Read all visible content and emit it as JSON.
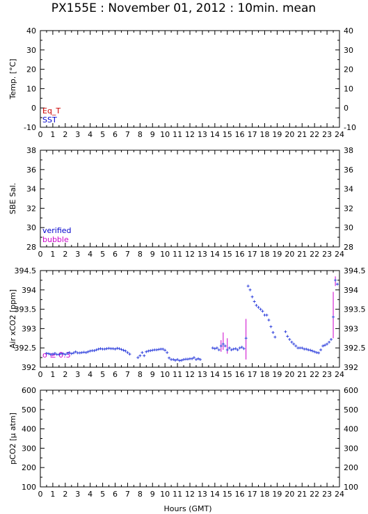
{
  "title": "PX155E : November 01, 2012 : 10min. mean",
  "xlabel": "Hours (GMT)",
  "chart_data": [
    {
      "type": "line",
      "ylabel": "Temp. [°C]",
      "xlim": [
        0,
        24
      ],
      "ylim": [
        -10,
        40
      ],
      "xticks": [
        0,
        1,
        2,
        3,
        4,
        5,
        6,
        7,
        8,
        9,
        10,
        11,
        12,
        13,
        14,
        15,
        16,
        17,
        18,
        19,
        20,
        21,
        22,
        23,
        24
      ],
      "yticks": [
        -10,
        0,
        10,
        20,
        30,
        40
      ],
      "legend": [
        {
          "label": "Eq_T",
          "color": "#cc0000"
        },
        {
          "label": "SST",
          "color": "#0000cc"
        }
      ],
      "series": []
    },
    {
      "type": "line",
      "ylabel": "SBE Sal.",
      "xlim": [
        0,
        24
      ],
      "ylim": [
        28,
        38
      ],
      "xticks": [
        0,
        1,
        2,
        3,
        4,
        5,
        6,
        7,
        8,
        9,
        10,
        11,
        12,
        13,
        14,
        15,
        16,
        17,
        18,
        19,
        20,
        21,
        22,
        23,
        24
      ],
      "yticks": [
        28,
        30,
        32,
        34,
        36,
        38
      ],
      "legend": [
        {
          "label": "verified",
          "color": "#0000cc"
        },
        {
          "label": "bubble",
          "color": "#cc00cc"
        }
      ],
      "series": []
    },
    {
      "type": "scatter",
      "ylabel": "Air xCO2 [ppm]",
      "xlim": [
        0,
        24
      ],
      "ylim": [
        392,
        394.5
      ],
      "xticks": [
        0,
        1,
        2,
        3,
        4,
        5,
        6,
        7,
        8,
        9,
        10,
        11,
        12,
        13,
        14,
        15,
        16,
        17,
        18,
        19,
        20,
        21,
        22,
        23,
        24
      ],
      "yticks": [
        392,
        392.5,
        393,
        393.5,
        394,
        394.5
      ],
      "ytick_labels": [
        "392",
        "392.5",
        "393",
        "393.5",
        "394",
        "394.5"
      ],
      "annotation": {
        "text": "σ ≥ 0.3",
        "color": "#cc00cc"
      },
      "marker_color": "#3344dd",
      "errorbar_color": "#cc00cc",
      "points": [
        [
          0.5,
          392.36
        ],
        [
          0.67,
          392.35
        ],
        [
          0.83,
          392.33
        ],
        [
          1.0,
          392.34
        ],
        [
          1.17,
          392.36
        ],
        [
          1.33,
          392.33
        ],
        [
          1.5,
          392.33
        ],
        [
          1.67,
          392.35
        ],
        [
          1.83,
          392.35
        ],
        [
          2.0,
          392.33
        ],
        [
          2.17,
          392.36
        ],
        [
          2.33,
          392.38
        ],
        [
          2.5,
          392.35
        ],
        [
          2.67,
          392.37
        ],
        [
          2.83,
          392.4
        ],
        [
          3.0,
          392.37
        ],
        [
          3.17,
          392.37
        ],
        [
          3.33,
          392.38
        ],
        [
          3.5,
          392.39
        ],
        [
          3.67,
          392.38
        ],
        [
          3.83,
          392.4
        ],
        [
          4.0,
          392.42
        ],
        [
          4.17,
          392.43
        ],
        [
          4.33,
          392.43
        ],
        [
          4.5,
          392.45
        ],
        [
          4.67,
          392.47
        ],
        [
          4.83,
          392.48
        ],
        [
          5.0,
          392.47
        ],
        [
          5.17,
          392.47
        ],
        [
          5.33,
          392.48
        ],
        [
          5.5,
          392.49
        ],
        [
          5.67,
          392.48
        ],
        [
          5.83,
          392.48
        ],
        [
          6.0,
          392.47
        ],
        [
          6.17,
          392.49
        ],
        [
          6.33,
          392.48
        ],
        [
          6.5,
          392.46
        ],
        [
          6.67,
          392.44
        ],
        [
          6.83,
          392.42
        ],
        [
          7.0,
          392.38
        ],
        [
          7.17,
          392.34
        ],
        [
          7.83,
          392.25
        ],
        [
          8.0,
          392.3
        ],
        [
          8.17,
          392.38
        ],
        [
          8.33,
          392.3
        ],
        [
          8.5,
          392.4
        ],
        [
          8.67,
          392.42
        ],
        [
          8.83,
          392.43
        ],
        [
          9.0,
          392.44
        ],
        [
          9.17,
          392.45
        ],
        [
          9.33,
          392.45
        ],
        [
          9.5,
          392.46
        ],
        [
          9.67,
          392.47
        ],
        [
          9.83,
          392.47
        ],
        [
          10.0,
          392.44
        ],
        [
          10.17,
          392.38
        ],
        [
          10.33,
          392.24
        ],
        [
          10.5,
          392.2
        ],
        [
          10.67,
          392.2
        ],
        [
          10.83,
          392.18
        ],
        [
          11.0,
          392.2
        ],
        [
          11.17,
          392.17
        ],
        [
          11.33,
          392.18
        ],
        [
          11.5,
          392.2
        ],
        [
          11.67,
          392.21
        ],
        [
          11.83,
          392.21
        ],
        [
          12.0,
          392.22
        ],
        [
          12.17,
          392.22
        ],
        [
          12.33,
          392.25
        ],
        [
          12.5,
          392.2
        ],
        [
          12.67,
          392.22
        ],
        [
          12.83,
          392.2
        ],
        [
          13.83,
          392.5
        ],
        [
          14.0,
          392.48
        ],
        [
          14.17,
          392.5
        ],
        [
          14.33,
          392.45
        ],
        [
          14.5,
          392.55
        ],
        [
          14.67,
          392.6
        ],
        [
          14.83,
          392.55
        ],
        [
          15.0,
          392.45
        ],
        [
          15.17,
          392.5
        ],
        [
          15.33,
          392.45
        ],
        [
          15.5,
          392.47
        ],
        [
          15.67,
          392.48
        ],
        [
          15.83,
          392.45
        ],
        [
          16.0,
          392.5
        ],
        [
          16.17,
          392.52
        ],
        [
          16.33,
          392.48
        ],
        [
          16.5,
          392.75
        ],
        [
          16.67,
          394.1
        ],
        [
          16.83,
          394.0
        ],
        [
          17.0,
          393.82
        ],
        [
          17.17,
          393.7
        ],
        [
          17.33,
          393.6
        ],
        [
          17.5,
          393.55
        ],
        [
          17.67,
          393.5
        ],
        [
          17.83,
          393.45
        ],
        [
          18.0,
          393.35
        ],
        [
          18.17,
          393.35
        ],
        [
          18.33,
          393.22
        ],
        [
          18.5,
          393.05
        ],
        [
          18.67,
          392.9
        ],
        [
          18.83,
          392.78
        ],
        [
          19.67,
          392.92
        ],
        [
          19.83,
          392.8
        ],
        [
          20.0,
          392.72
        ],
        [
          20.17,
          392.65
        ],
        [
          20.33,
          392.6
        ],
        [
          20.5,
          392.55
        ],
        [
          20.67,
          392.5
        ],
        [
          20.83,
          392.5
        ],
        [
          21.0,
          392.5
        ],
        [
          21.17,
          392.47
        ],
        [
          21.33,
          392.47
        ],
        [
          21.5,
          392.45
        ],
        [
          21.67,
          392.44
        ],
        [
          21.83,
          392.42
        ],
        [
          22.0,
          392.4
        ],
        [
          22.17,
          392.38
        ],
        [
          22.33,
          392.37
        ],
        [
          22.5,
          392.45
        ],
        [
          22.67,
          392.55
        ],
        [
          22.83,
          392.57
        ],
        [
          23.0,
          392.6
        ],
        [
          23.17,
          392.65
        ],
        [
          23.33,
          392.72
        ],
        [
          23.5,
          393.3
        ],
        [
          23.67,
          394.25
        ],
        [
          23.83,
          394.15
        ]
      ],
      "errorbars": [
        {
          "x": 14.5,
          "low": 392.4,
          "high": 392.7
        },
        {
          "x": 14.67,
          "low": 392.45,
          "high": 392.9
        },
        {
          "x": 15.0,
          "low": 392.35,
          "high": 392.75
        },
        {
          "x": 16.5,
          "low": 392.2,
          "high": 393.25
        },
        {
          "x": 23.5,
          "low": 392.75,
          "high": 393.95
        },
        {
          "x": 23.67,
          "low": 394.1,
          "high": 394.35
        }
      ]
    },
    {
      "type": "line",
      "ylabel": "pCO2 [μ atm]",
      "xlim": [
        0,
        24
      ],
      "ylim": [
        100,
        600
      ],
      "xticks": [
        0,
        1,
        2,
        3,
        4,
        5,
        6,
        7,
        8,
        9,
        10,
        11,
        12,
        13,
        14,
        15,
        16,
        17,
        18,
        19,
        20,
        21,
        22,
        23,
        24
      ],
      "yticks": [
        100,
        200,
        300,
        400,
        500,
        600
      ],
      "series": []
    }
  ]
}
